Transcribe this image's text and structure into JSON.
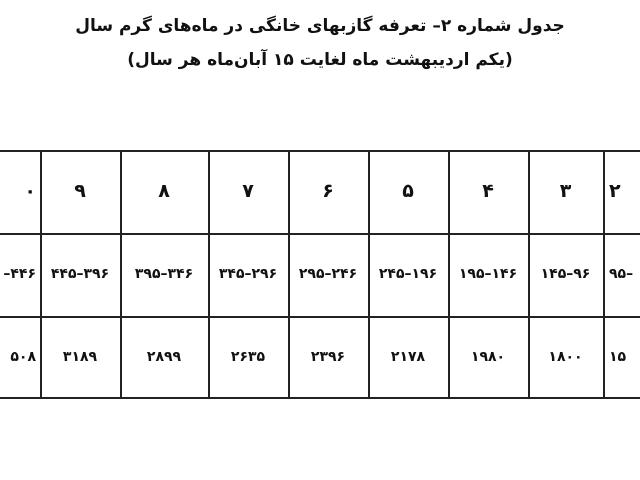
{
  "title": "جدول شماره ۲– تعرفه گازبهای خانگی در ماه‌های گرم سال",
  "subtitle": "(یکم اردیبهشت ماه لغایت ۱۵ آبان‌ماه هر سال)",
  "table": {
    "columns": [
      {
        "header": "۰",
        "range": "–۴۴۶",
        "price": "۵۰۸"
      },
      {
        "header": "۹",
        "range": "۴۴۵–۳۹۶",
        "price": "۳۱۸۹"
      },
      {
        "header": "۸",
        "range": "۳۹۵–۳۴۶",
        "price": "۲۸۹۹"
      },
      {
        "header": "۷",
        "range": "۳۴۵–۲۹۶",
        "price": "۲۶۳۵"
      },
      {
        "header": "۶",
        "range": "۲۹۵–۲۴۶",
        "price": "۲۳۹۶"
      },
      {
        "header": "۵",
        "range": "۲۴۵–۱۹۶",
        "price": "۲۱۷۸"
      },
      {
        "header": "۴",
        "range": "۱۹۵–۱۴۶",
        "price": "۱۹۸۰"
      },
      {
        "header": "۳",
        "range": "۱۴۵–۹۶",
        "price": "۱۸۰۰"
      },
      {
        "header": "۲",
        "range": "۹۵–",
        "price": "۱۵"
      }
    ]
  }
}
